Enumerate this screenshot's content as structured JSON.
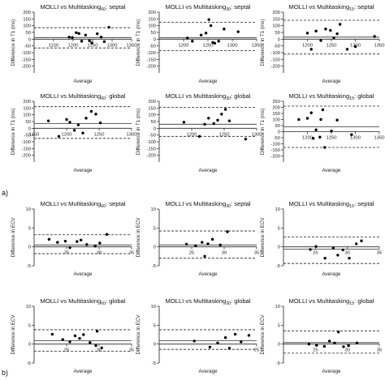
{
  "panel_labels": [
    "a)",
    "b)"
  ],
  "chart_data": [
    {
      "type": "scatter",
      "title": "MOLLI vs Multitasking",
      "title_sub": "60",
      "title_suffix": ": septal",
      "xlabel": "Average",
      "ylabel": "Difference in T1 (ms)",
      "xlim": [
        1100,
        1350
      ],
      "xticks": [
        1150,
        1200,
        1250,
        1300,
        1350
      ],
      "ylim": [
        -250,
        200
      ],
      "yticks": [
        -200,
        -150,
        -100,
        -50,
        0,
        50,
        100,
        150,
        200
      ],
      "mean": 12,
      "loa": [
        85,
        -65
      ],
      "points": [
        [
          1190,
          15
        ],
        [
          1198,
          12
        ],
        [
          1208,
          48
        ],
        [
          1215,
          42
        ],
        [
          1222,
          -15
        ],
        [
          1232,
          30
        ],
        [
          1242,
          -12
        ],
        [
          1248,
          -28
        ],
        [
          1262,
          40
        ],
        [
          1272,
          15
        ],
        [
          1280,
          -18
        ],
        [
          1292,
          88
        ]
      ]
    },
    {
      "type": "scatter",
      "title": "MOLLI vs Multitasking",
      "title_sub": "30",
      "title_suffix": ": septal",
      "xlabel": "Average",
      "ylabel": "Difference in T1 (ms)",
      "xlim": [
        1150,
        1350
      ],
      "xticks": [
        1200,
        1250,
        1300,
        1350
      ],
      "ylim": [
        -250,
        200
      ],
      "yticks": [
        -200,
        -150,
        -100,
        -50,
        0,
        50,
        100,
        150,
        200
      ],
      "mean": 10,
      "loa": [
        125,
        -85
      ],
      "points": [
        [
          1208,
          8
        ],
        [
          1218,
          -15
        ],
        [
          1236,
          30
        ],
        [
          1246,
          45
        ],
        [
          1252,
          145
        ],
        [
          1256,
          100
        ],
        [
          1260,
          -25
        ],
        [
          1264,
          -30
        ],
        [
          1272,
          -15
        ],
        [
          1283,
          75
        ],
        [
          1312,
          55
        ]
      ]
    },
    {
      "type": "scatter",
      "title": "MOLLI vs Multitasking",
      "title_sub": "15",
      "title_suffix": ": septal",
      "xlabel": "Average",
      "ylabel": "Difference in T1 (ms)",
      "xlim": [
        1150,
        1350
      ],
      "xticks": [
        1200,
        1250,
        1300,
        1350
      ],
      "ylim": [
        -250,
        200
      ],
      "yticks": [
        -200,
        -150,
        -100,
        -50,
        0,
        50,
        100,
        150,
        200
      ],
      "mean": 15,
      "loa": [
        140,
        -110
      ],
      "points": [
        [
          1200,
          45
        ],
        [
          1208,
          -75
        ],
        [
          1218,
          60
        ],
        [
          1228,
          -10
        ],
        [
          1238,
          75
        ],
        [
          1248,
          65
        ],
        [
          1255,
          10
        ],
        [
          1262,
          40
        ],
        [
          1268,
          110
        ],
        [
          1283,
          -75
        ],
        [
          1300,
          -55
        ],
        [
          1340,
          20
        ]
      ]
    },
    {
      "type": "scatter",
      "title": "MOLLI vs Multitasking",
      "title_sub": "60",
      "title_suffix": ": global",
      "xlabel": "Average",
      "ylabel": "Difference in T1 (ms)",
      "xlim": [
        1150,
        1300
      ],
      "xticks": [
        1150,
        1200,
        1250,
        1300
      ],
      "ylim": [
        -250,
        200
      ],
      "yticks": [
        -200,
        -150,
        -100,
        -50,
        0,
        50,
        100,
        150,
        200
      ],
      "mean": 35,
      "loa": [
        160,
        -75
      ],
      "points": [
        [
          1172,
          55
        ],
        [
          1188,
          -60
        ],
        [
          1200,
          65
        ],
        [
          1205,
          45
        ],
        [
          1212,
          -15
        ],
        [
          1218,
          25
        ],
        [
          1225,
          -35
        ],
        [
          1230,
          75
        ],
        [
          1238,
          125
        ],
        [
          1245,
          105
        ],
        [
          1252,
          40
        ]
      ]
    },
    {
      "type": "scatter",
      "title": "MOLLI vs Multitasking",
      "title_sub": "30",
      "title_suffix": ": global",
      "xlabel": "Average",
      "ylabel": "Difference in T1 (ms)",
      "xlim": [
        1150,
        1300
      ],
      "xticks": [
        1200,
        1250,
        1300
      ],
      "ylim": [
        -250,
        200
      ],
      "yticks": [
        -200,
        -150,
        -100,
        -50,
        0,
        50,
        100,
        150,
        200
      ],
      "mean": 30,
      "loa": [
        155,
        -60
      ],
      "points": [
        [
          1188,
          45
        ],
        [
          1212,
          -60
        ],
        [
          1220,
          30
        ],
        [
          1226,
          75
        ],
        [
          1234,
          35
        ],
        [
          1240,
          60
        ],
        [
          1246,
          105
        ],
        [
          1252,
          140
        ],
        [
          1258,
          55
        ],
        [
          1283,
          -80
        ]
      ]
    },
    {
      "type": "scatter",
      "title": "MOLLI vs Multitasking",
      "title_sub": "15",
      "title_suffix": ": global",
      "xlabel": "Average",
      "ylabel": "Difference in T1 (ms)",
      "xlim": [
        1150,
        1350
      ],
      "xticks": [
        1200,
        1250,
        1300,
        1350
      ],
      "ylim": [
        -250,
        250
      ],
      "yticks": [
        -200,
        -150,
        -100,
        -50,
        0,
        50,
        100,
        150,
        200,
        250
      ],
      "mean": 40,
      "loa": [
        210,
        -130
      ],
      "points": [
        [
          1182,
          100
        ],
        [
          1200,
          110
        ],
        [
          1208,
          155
        ],
        [
          1212,
          -55
        ],
        [
          1218,
          15
        ],
        [
          1226,
          -45
        ],
        [
          1228,
          100
        ],
        [
          1232,
          180
        ],
        [
          1236,
          -130
        ],
        [
          1250,
          5
        ],
        [
          1262,
          95
        ],
        [
          1292,
          -25
        ]
      ]
    },
    {
      "type": "scatter",
      "title": "MOLLI vs Multitasking",
      "title_sub": "60",
      "title_suffix": ": septal",
      "xlabel": "Average",
      "ylabel": "Difference in ECV",
      "xlim": [
        20,
        35
      ],
      "xticks": [
        25,
        30,
        35
      ],
      "ylim": [
        -5,
        10
      ],
      "yticks": [
        -5,
        0,
        5,
        10
      ],
      "mean": 0.5,
      "loa": [
        3.2,
        -1.8
      ],
      "points": [
        [
          22.3,
          2.0
        ],
        [
          23.6,
          1.2
        ],
        [
          24.8,
          1.5
        ],
        [
          25.5,
          -0.2
        ],
        [
          26.6,
          1.4
        ],
        [
          27.2,
          1.8
        ],
        [
          28.1,
          0.6
        ],
        [
          29.4,
          0.2
        ],
        [
          30.1,
          1.0
        ],
        [
          31.2,
          3.3
        ]
      ]
    },
    {
      "type": "scatter",
      "title": "MOLLI vs Multitasking",
      "title_sub": "30",
      "title_suffix": ": septal",
      "xlabel": "Average",
      "ylabel": "Difference in ECV",
      "xlim": [
        20,
        35
      ],
      "xticks": [
        25,
        30,
        35
      ],
      "ylim": [
        -5,
        10
      ],
      "yticks": [
        -5,
        0,
        5,
        10
      ],
      "mean": 0.5,
      "loa": [
        4.2,
        -3.0
      ],
      "points": [
        [
          24.2,
          0.7
        ],
        [
          25.6,
          0.3
        ],
        [
          26.6,
          1.2
        ],
        [
          27.0,
          -2.5
        ],
        [
          27.5,
          0.8
        ],
        [
          28.2,
          2.0
        ],
        [
          29.4,
          0.5
        ],
        [
          30.5,
          4.0
        ]
      ]
    },
    {
      "type": "scatter",
      "title": "MOLLI vs Multitasking",
      "title_sub": "15",
      "title_suffix": ": septal",
      "xlabel": "Average",
      "ylabel": "Difference in ECV",
      "xlim": [
        20,
        35
      ],
      "xticks": [
        25,
        30,
        35
      ],
      "ylim": [
        -5,
        10
      ],
      "yticks": [
        -5,
        0,
        5,
        10
      ],
      "mean": -0.6,
      "loa": [
        2.6,
        -4.4
      ],
      "points": [
        [
          24.2,
          -0.7
        ],
        [
          25.1,
          0.1
        ],
        [
          26.5,
          -3.0
        ],
        [
          27.8,
          -0.3
        ],
        [
          28.5,
          -2.2
        ],
        [
          29.3,
          -0.8
        ],
        [
          30.3,
          -3.0
        ],
        [
          31.4,
          0.8
        ],
        [
          32.2,
          1.6
        ]
      ]
    },
    {
      "type": "scatter",
      "title": "MOLLI vs Multitasking",
      "title_sub": "60",
      "title_suffix": ": global",
      "xlabel": "Average",
      "ylabel": "Difference in ECV",
      "xlim": [
        20,
        35
      ],
      "xticks": [
        25,
        30,
        35
      ],
      "ylim": [
        -5,
        10
      ],
      "yticks": [
        -5,
        0,
        5,
        10
      ],
      "mean": 0.9,
      "loa": [
        3.8,
        -1.9
      ],
      "points": [
        [
          22.8,
          2.6
        ],
        [
          24.4,
          1.2
        ],
        [
          25.5,
          0.6
        ],
        [
          26.3,
          2.2
        ],
        [
          27.0,
          1.5
        ],
        [
          27.6,
          2.5
        ],
        [
          28.6,
          0.4
        ],
        [
          29.5,
          -0.4
        ],
        [
          29.7,
          3.4
        ],
        [
          30.4,
          -1.0
        ]
      ]
    },
    {
      "type": "scatter",
      "title": "MOLLI vs Multitasking",
      "title_sub": "30",
      "title_suffix": ": global",
      "xlabel": "Average",
      "ylabel": "Difference in ECV",
      "xlim": [
        20,
        25
      ],
      "xticks": [
        25
      ],
      "ylim": [
        -5,
        10
      ],
      "yticks": [
        -5,
        0,
        5,
        10
      ],
      "mean": 0.9,
      "loa": [
        3.8,
        -1.4
      ],
      "points": [
        [
          21.8,
          0.8
        ],
        [
          22.6,
          -0.8
        ],
        [
          23.0,
          0.3
        ],
        [
          23.4,
          1.7
        ],
        [
          23.6,
          -1.1
        ],
        [
          23.9,
          2.6
        ],
        [
          24.2,
          0.6
        ],
        [
          24.6,
          2.3
        ]
      ]
    },
    {
      "type": "scatter",
      "title": "MOLLI vs Multitasking",
      "title_sub": "15",
      "title_suffix": ": global",
      "xlabel": "Average",
      "ylabel": "Difference in ECV",
      "xlim": [
        20,
        35
      ],
      "xticks": [
        25,
        30,
        35
      ],
      "ylim": [
        -5,
        10
      ],
      "yticks": [
        -5,
        0,
        5,
        10
      ],
      "mean": 0.4,
      "loa": [
        3.5,
        -2.4
      ],
      "points": [
        [
          24.0,
          0.0
        ],
        [
          25.2,
          -0.3
        ],
        [
          26.4,
          -0.6
        ],
        [
          27.2,
          0.8
        ],
        [
          28.0,
          0.3
        ],
        [
          28.6,
          3.2
        ],
        [
          29.4,
          -0.7
        ],
        [
          30.2,
          -0.4
        ],
        [
          31.5,
          0.3
        ]
      ]
    }
  ]
}
